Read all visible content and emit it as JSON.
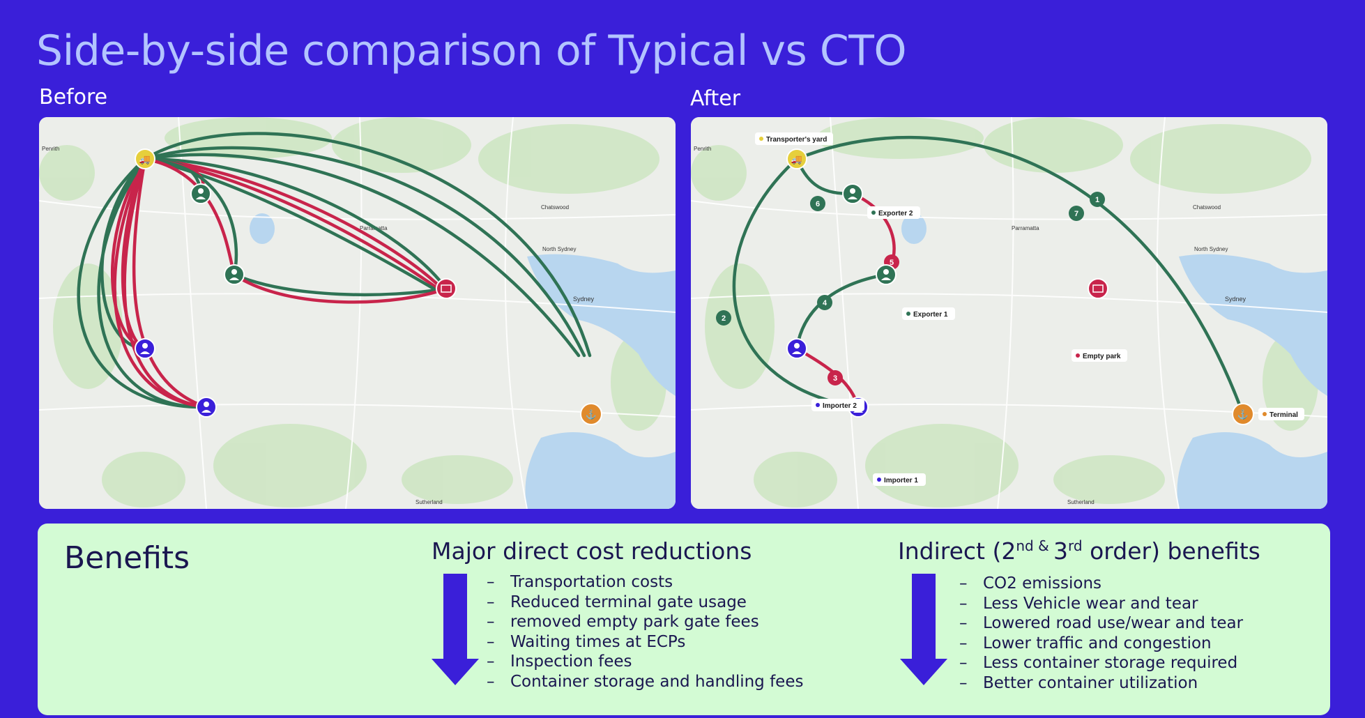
{
  "title": "Side-by-side comparison of Typical vs CTO",
  "before_label": "Before",
  "after_label": "After",
  "colors": {
    "background": "#3a1fd9",
    "route_green": "#2f7355",
    "route_red": "#c8244b",
    "transporter": "#e6cf3c",
    "exporter": "#2f7355",
    "importer": "#3a1fd9",
    "empty_park": "#c8244b",
    "terminal": "#e08a2c",
    "benefits_bg": "#d3fbd4"
  },
  "after_map": {
    "labels": {
      "transporters_yard": "Transporter's yard",
      "exporter2": "Exporter 2",
      "exporter1": "Exporter 1",
      "importer2": "Importer 2",
      "importer1": "Importer 1",
      "empty_park": "Empty park",
      "terminal": "Terminal"
    },
    "steps": [
      "1",
      "2",
      "3",
      "4",
      "5",
      "6",
      "7"
    ]
  },
  "map_place_names": {
    "penrith": "Penrith",
    "parramatta": "Parramatta",
    "sydney": "Sydney",
    "sutherland": "Sutherland",
    "chatswood": "Chatswood",
    "north_sydney": "North Sydney"
  },
  "benefits": {
    "title": "Benefits",
    "direct": {
      "heading": "Major direct cost reductions",
      "items": [
        "Transportation costs",
        "Reduced terminal gate usage",
        "removed empty park gate fees",
        "Waiting times at ECPs",
        "Inspection fees",
        "Container storage and handling fees"
      ]
    },
    "indirect": {
      "heading_pre": "Indirect (2",
      "sup1": "nd",
      "mid": " & ",
      "sup2": "3",
      "sup3": "rd",
      "heading_post": " order) benefits",
      "items": [
        "CO2 emissions",
        "Less Vehicle wear and tear",
        "Lowered road use/wear and tear",
        "Lower traffic and congestion",
        "Less container storage required",
        "Better container utilization"
      ]
    },
    "dash": "–"
  }
}
